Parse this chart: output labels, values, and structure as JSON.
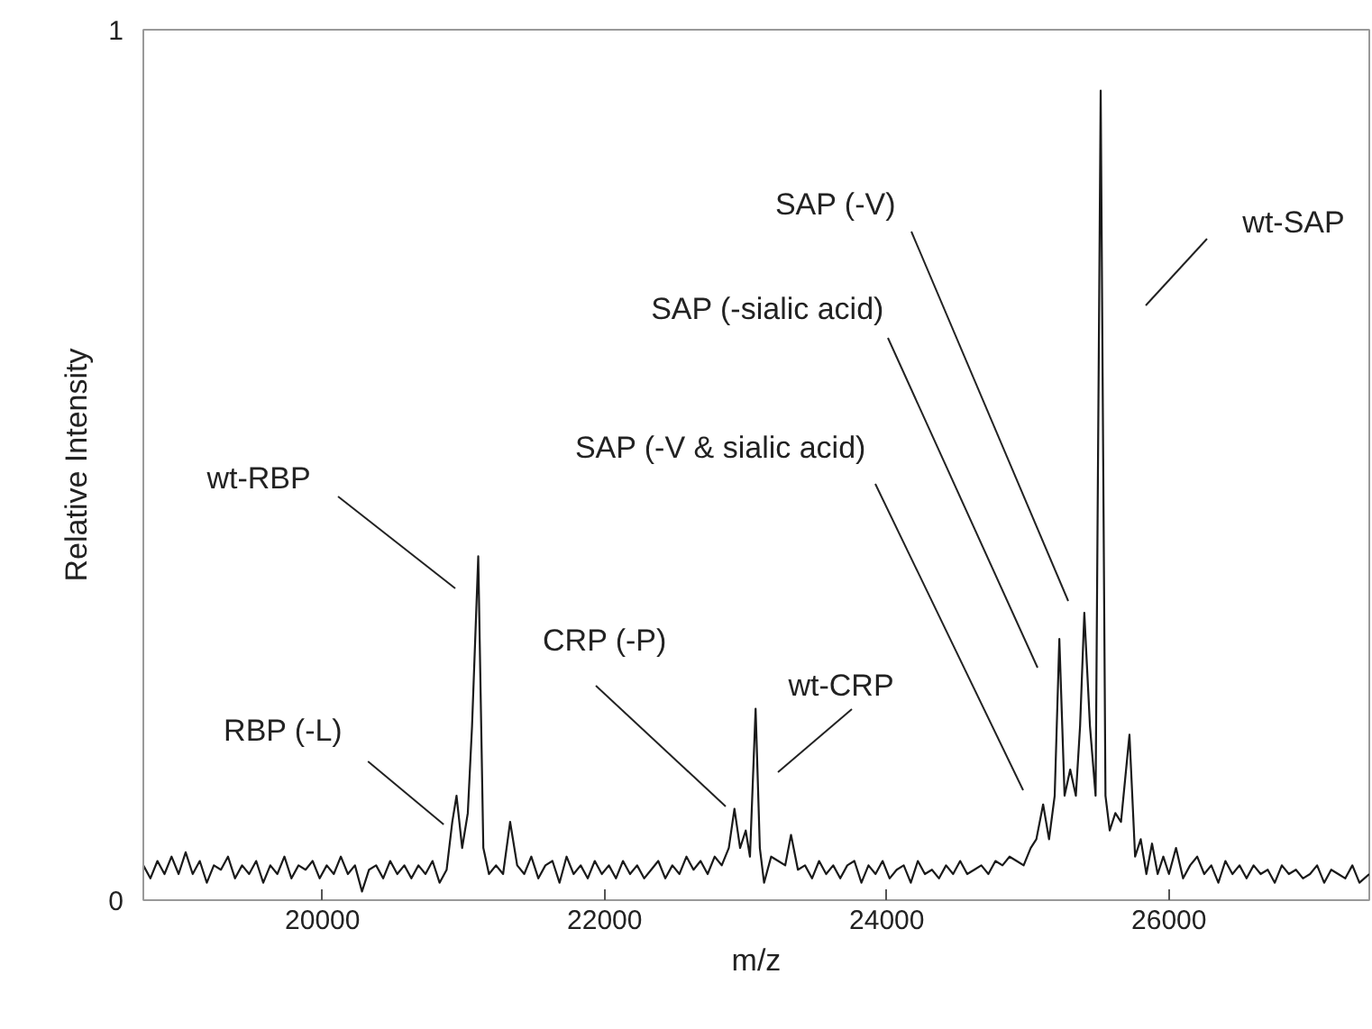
{
  "chart_data": {
    "type": "line",
    "xlabel": "m/z",
    "ylabel": "Relative Intensity",
    "xlim": [
      18730,
      27420
    ],
    "ylim": [
      0,
      1
    ],
    "xticks": [
      20000,
      22000,
      24000,
      26000
    ],
    "yticks": [
      0,
      1
    ],
    "grid": false,
    "marker": "none",
    "line_style": "solid",
    "x": [
      18730,
      18780,
      18830,
      18880,
      18930,
      18980,
      19030,
      19080,
      19130,
      19180,
      19230,
      19280,
      19330,
      19380,
      19430,
      19480,
      19530,
      19580,
      19630,
      19680,
      19730,
      19780,
      19830,
      19880,
      19930,
      19980,
      20030,
      20080,
      20130,
      20180,
      20230,
      20280,
      20330,
      20380,
      20430,
      20480,
      20530,
      20580,
      20630,
      20680,
      20730,
      20780,
      20830,
      20880,
      20920,
      20950,
      20990,
      21030,
      21060,
      21104,
      21140,
      21180,
      21230,
      21280,
      21330,
      21380,
      21430,
      21480,
      21530,
      21580,
      21630,
      21680,
      21730,
      21780,
      21830,
      21880,
      21930,
      21980,
      22030,
      22080,
      22130,
      22180,
      22230,
      22280,
      22330,
      22380,
      22430,
      22480,
      22530,
      22580,
      22630,
      22680,
      22730,
      22780,
      22830,
      22880,
      22920,
      22960,
      23000,
      23030,
      23070,
      23100,
      23130,
      23180,
      23230,
      23280,
      23321,
      23370,
      23420,
      23470,
      23520,
      23570,
      23620,
      23670,
      23720,
      23770,
      23820,
      23870,
      23920,
      23970,
      24020,
      24070,
      24120,
      24170,
      24220,
      24270,
      24320,
      24370,
      24420,
      24470,
      24520,
      24570,
      24620,
      24670,
      24720,
      24770,
      24820,
      24870,
      24920,
      24970,
      25020,
      25060,
      25108,
      25150,
      25190,
      25223,
      25260,
      25300,
      25340,
      25370,
      25400,
      25440,
      25480,
      25516,
      25550,
      25580,
      25620,
      25660,
      25720,
      25760,
      25800,
      25840,
      25880,
      25920,
      25960,
      26000,
      26050,
      26100,
      26150,
      26200,
      26250,
      26300,
      26350,
      26400,
      26450,
      26500,
      26550,
      26600,
      26650,
      26700,
      26750,
      26800,
      26850,
      26900,
      26950,
      27000,
      27050,
      27100,
      27150,
      27200,
      27250,
      27300,
      27350,
      27420
    ],
    "series": [
      {
        "color": "#1a1a1a",
        "values": [
          0.04,
          0.025,
          0.045,
          0.03,
          0.05,
          0.03,
          0.055,
          0.03,
          0.045,
          0.02,
          0.04,
          0.035,
          0.05,
          0.025,
          0.04,
          0.03,
          0.045,
          0.02,
          0.04,
          0.03,
          0.05,
          0.025,
          0.04,
          0.035,
          0.045,
          0.025,
          0.04,
          0.03,
          0.05,
          0.03,
          0.04,
          0.01,
          0.035,
          0.04,
          0.025,
          0.045,
          0.03,
          0.04,
          0.025,
          0.04,
          0.03,
          0.045,
          0.02,
          0.035,
          0.09,
          0.12,
          0.06,
          0.1,
          0.2,
          0.395,
          0.06,
          0.03,
          0.04,
          0.03,
          0.09,
          0.04,
          0.03,
          0.05,
          0.025,
          0.04,
          0.045,
          0.02,
          0.05,
          0.03,
          0.04,
          0.025,
          0.045,
          0.03,
          0.04,
          0.025,
          0.045,
          0.03,
          0.04,
          0.025,
          0.035,
          0.045,
          0.025,
          0.04,
          0.03,
          0.05,
          0.035,
          0.045,
          0.03,
          0.05,
          0.04,
          0.06,
          0.105,
          0.06,
          0.08,
          0.05,
          0.22,
          0.06,
          0.02,
          0.05,
          0.045,
          0.04,
          0.075,
          0.035,
          0.04,
          0.025,
          0.045,
          0.03,
          0.04,
          0.025,
          0.04,
          0.045,
          0.02,
          0.04,
          0.03,
          0.045,
          0.025,
          0.035,
          0.04,
          0.02,
          0.045,
          0.03,
          0.035,
          0.025,
          0.04,
          0.03,
          0.045,
          0.03,
          0.035,
          0.04,
          0.03,
          0.045,
          0.04,
          0.05,
          0.045,
          0.04,
          0.06,
          0.07,
          0.11,
          0.07,
          0.12,
          0.3,
          0.12,
          0.15,
          0.12,
          0.2,
          0.33,
          0.2,
          0.12,
          0.93,
          0.12,
          0.08,
          0.1,
          0.09,
          0.19,
          0.05,
          0.07,
          0.03,
          0.065,
          0.03,
          0.05,
          0.03,
          0.06,
          0.025,
          0.04,
          0.05,
          0.03,
          0.04,
          0.02,
          0.045,
          0.03,
          0.04,
          0.025,
          0.04,
          0.03,
          0.035,
          0.02,
          0.04,
          0.03,
          0.035,
          0.025,
          0.03,
          0.04,
          0.02,
          0.035,
          0.03,
          0.025,
          0.04,
          0.02,
          0.03
        ]
      }
    ],
    "annotations": [
      {
        "text": "RBP (-L)",
        "x": 20859,
        "y": 0.087
      },
      "wt-RBP",
      "CRP (-P)",
      "wt-CRP",
      "SAP (-V & sialic acid)",
      "SAP (-sialic acid)",
      "SAP (-V)",
      "wt-SAP"
    ]
  }
}
